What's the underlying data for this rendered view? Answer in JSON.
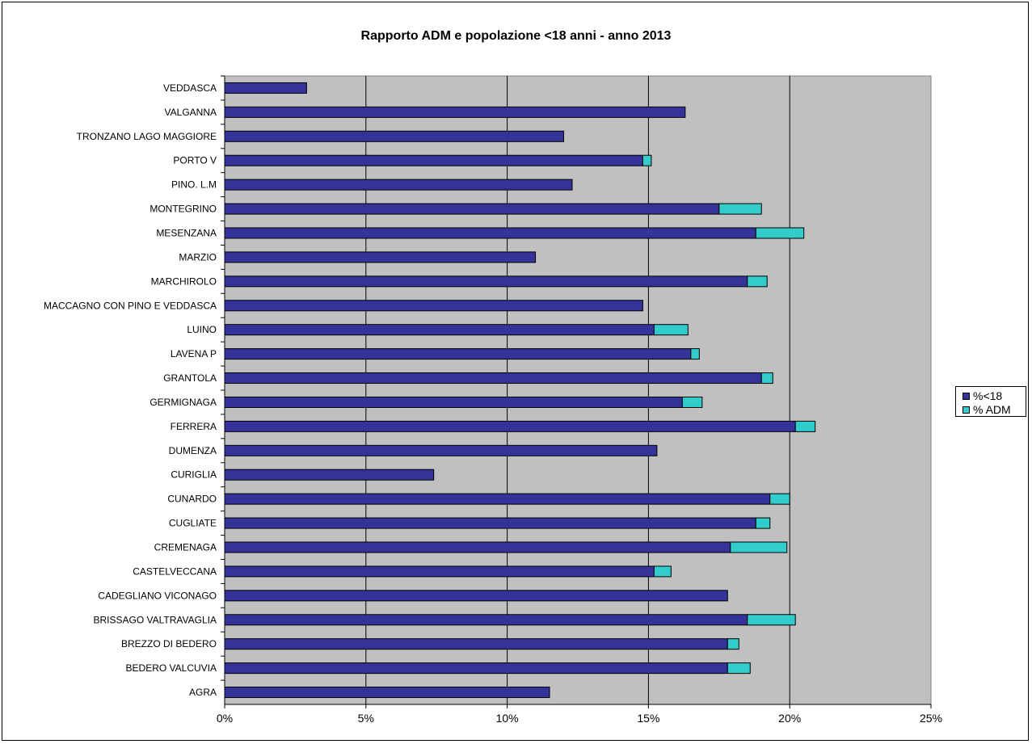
{
  "chart_data": {
    "type": "bar",
    "orientation": "horizontal",
    "stacked": true,
    "title": "Rapporto ADM e popolazione <18 anni - anno 2013",
    "categories": [
      "VEDDASCA",
      "VALGANNA",
      "TRONZANO LAGO MAGGIORE",
      "PORTO V",
      "PINO. L.M",
      "MONTEGRINO",
      "MESENZANA",
      "MARZIO",
      "MARCHIROLO",
      "MACCAGNO  CON PINO E VEDDASCA",
      "LUINO",
      "LAVENA P",
      "GRANTOLA",
      "GERMIGNAGA",
      "FERRERA",
      "DUMENZA",
      "CURIGLIA",
      "CUNARDO",
      "CUGLIATE",
      "CREMENAGA",
      "CASTELVECCANA",
      "CADEGLIANO VICONAGO",
      "BRISSAGO VALTRAVAGLIA",
      "BREZZO DI BEDERO",
      "BEDERO VALCUVIA",
      "AGRA"
    ],
    "series": [
      {
        "name": "%<18",
        "color": "#333399",
        "values": [
          2.9,
          16.3,
          12.0,
          14.8,
          12.3,
          17.5,
          18.8,
          11.0,
          18.5,
          14.8,
          15.2,
          16.5,
          19.0,
          16.2,
          20.2,
          15.3,
          7.4,
          19.3,
          18.8,
          17.9,
          15.2,
          17.8,
          18.5,
          17.8,
          17.8,
          11.5
        ]
      },
      {
        "name": "% ADM",
        "color": "#33CCCC",
        "values": [
          0,
          0,
          0,
          0.3,
          0,
          1.5,
          1.7,
          0,
          0.7,
          0,
          1.2,
          0.3,
          0.4,
          0.7,
          0.7,
          0,
          0,
          0.7,
          0.5,
          2.0,
          0.6,
          0,
          1.7,
          0.4,
          0.8,
          0
        ]
      }
    ],
    "xlim": [
      0,
      25
    ],
    "xticks": [
      "0%",
      "5%",
      "10%",
      "15%",
      "20%",
      "25%"
    ],
    "grid": true,
    "legend_position": "right",
    "plot_background": "#C0C0C0"
  }
}
